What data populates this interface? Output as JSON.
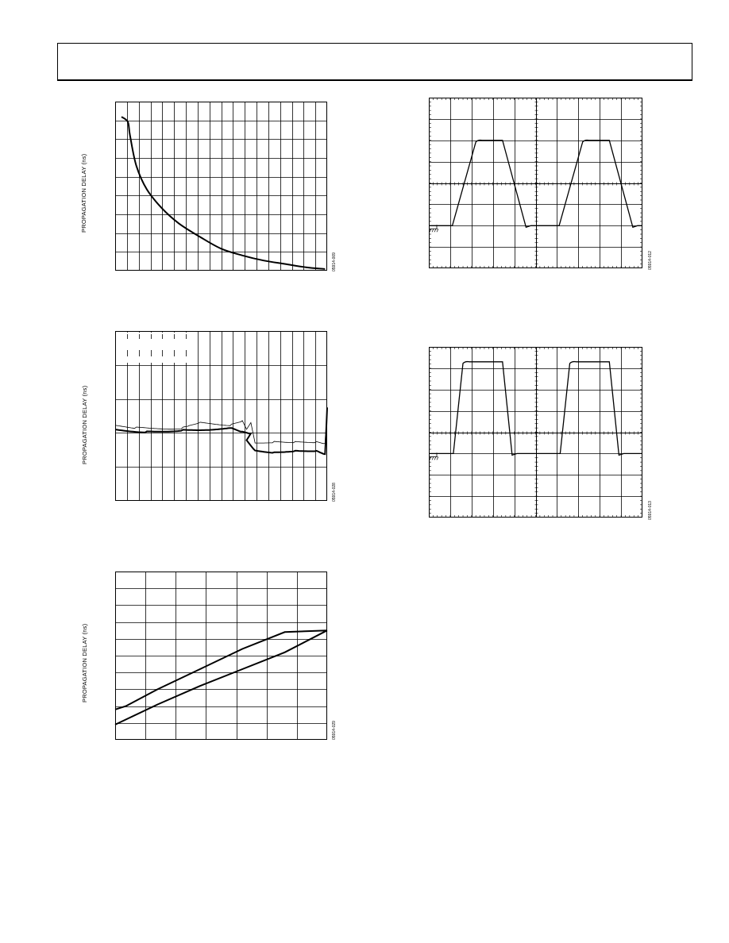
{
  "figures": [
    {
      "id": "fig-prop-delay-curve",
      "ylabel": "PROPAGATION DELAY (ns)",
      "fignum": "05914-009",
      "chart_data": {
        "type": "line",
        "title": "",
        "xlabel": "",
        "ylabel": "PROPAGATION DELAY (ns)",
        "grid": true,
        "grid_divisions": {
          "x": 18,
          "y": 9
        },
        "series": [
          {
            "values_normalized_curve": [
              [
                0.03,
                0.91
              ],
              [
                0.06,
                0.88
              ],
              [
                0.07,
                0.8
              ],
              [
                0.1,
                0.62
              ],
              [
                0.15,
                0.48
              ],
              [
                0.22,
                0.37
              ],
              [
                0.3,
                0.28
              ],
              [
                0.4,
                0.2
              ],
              [
                0.5,
                0.13
              ],
              [
                0.6,
                0.09
              ],
              [
                0.7,
                0.06
              ],
              [
                0.8,
                0.04
              ],
              [
                0.9,
                0.02
              ],
              [
                0.99,
                0.01
              ]
            ]
          }
        ]
      }
    },
    {
      "id": "fig-prop-delay-noisy",
      "ylabel": "PROPAGATION DELAY (ns)",
      "fignum": "05914-028",
      "chart_data": {
        "type": "line",
        "title": "",
        "xlabel": "",
        "ylabel": "PROPAGATION DELAY (ns)",
        "grid": true,
        "grid_divisions": {
          "x": 18,
          "y": 5
        },
        "series": [
          {
            "values_normalized_curve": [
              [
                0.0,
                0.42
              ],
              [
                0.15,
                0.41
              ],
              [
                0.32,
                0.42
              ],
              [
                0.55,
                0.43
              ],
              [
                0.6,
                0.41
              ],
              [
                0.64,
                0.4
              ],
              [
                0.62,
                0.36
              ],
              [
                0.66,
                0.3
              ],
              [
                0.75,
                0.29
              ],
              [
                0.85,
                0.3
              ],
              [
                0.95,
                0.3
              ],
              [
                0.99,
                0.28
              ],
              [
                1.0,
                0.55
              ]
            ]
          },
          {
            "values_normalized_curve": [
              [
                0.0,
                0.44
              ],
              [
                0.1,
                0.43
              ],
              [
                0.32,
                0.43
              ],
              [
                0.35,
                0.44
              ],
              [
                0.4,
                0.46
              ],
              [
                0.55,
                0.45
              ],
              [
                0.6,
                0.47
              ],
              [
                0.62,
                0.42
              ],
              [
                0.64,
                0.46
              ],
              [
                0.66,
                0.34
              ],
              [
                0.75,
                0.35
              ],
              [
                0.85,
                0.35
              ],
              [
                0.95,
                0.35
              ],
              [
                0.99,
                0.34
              ],
              [
                1.0,
                0.55
              ]
            ]
          }
        ]
      }
    },
    {
      "id": "fig-prop-delay-linear",
      "ylabel": "PROPAGATION DELAY (ns)",
      "fignum": "05914-029",
      "chart_data": {
        "type": "line",
        "title": "",
        "xlabel": "",
        "ylabel": "PROPAGATION DELAY (ns)",
        "grid": true,
        "grid_divisions": {
          "x": 7,
          "y": 10
        },
        "series": [
          {
            "values_normalized_curve": [
              [
                0.0,
                0.18
              ],
              [
                0.05,
                0.2
              ],
              [
                0.2,
                0.3
              ],
              [
                0.4,
                0.42
              ],
              [
                0.6,
                0.54
              ],
              [
                0.8,
                0.64
              ],
              [
                1.0,
                0.65
              ]
            ]
          },
          {
            "values_normalized_curve": [
              [
                0.0,
                0.09
              ],
              [
                0.2,
                0.21
              ],
              [
                0.4,
                0.32
              ],
              [
                0.6,
                0.42
              ],
              [
                0.8,
                0.52
              ],
              [
                1.0,
                0.65
              ]
            ]
          }
        ]
      }
    },
    {
      "id": "fig-scope-1",
      "fignum": "05914-012",
      "ground_marker": "ground-icon",
      "chart_data": {
        "type": "line",
        "title": "",
        "grid": true,
        "grid_divisions": {
          "x": 10,
          "y": 8
        },
        "series": [
          {
            "waveform": "square",
            "low_level_div": 2.0,
            "high_level_div": 6.0,
            "period_div": 5.0
          }
        ]
      }
    },
    {
      "id": "fig-scope-2",
      "fignum": "05914-013",
      "ground_marker": "ground-icon",
      "chart_data": {
        "type": "line",
        "title": "",
        "grid": true,
        "grid_divisions": {
          "x": 10,
          "y": 8
        },
        "series": [
          {
            "waveform": "square",
            "low_level_div": 3.0,
            "high_level_div": 7.3,
            "period_div": 5.0
          }
        ]
      }
    }
  ]
}
